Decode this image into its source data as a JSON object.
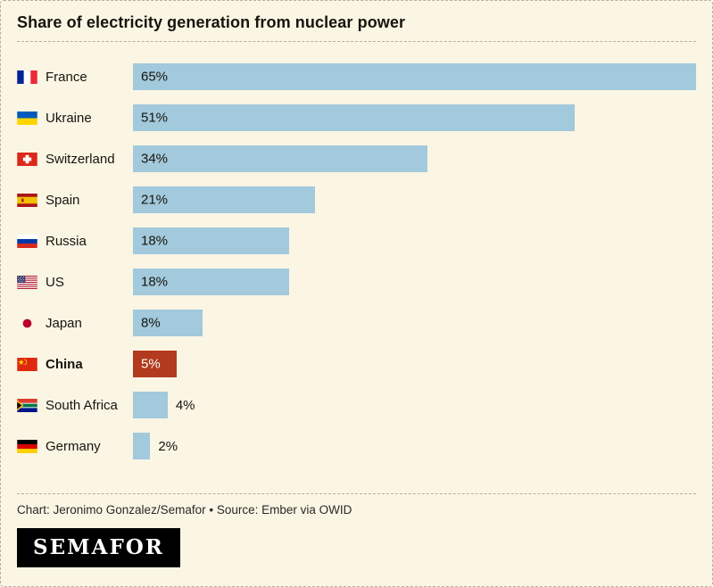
{
  "title": "Share of electricity generation from nuclear power",
  "footer": {
    "credit": "Chart: Jeronimo Gonzalez/Semafor • Source: Ember via OWID",
    "logo": "SEMAFOR"
  },
  "colors": {
    "background": "#fbf5e4",
    "bar": "#a2c9dc",
    "highlight_bar": "#b23a1e",
    "text": "#17140d"
  },
  "chart_data": {
    "type": "bar",
    "orientation": "horizontal",
    "title": "Share of electricity generation from nuclear power",
    "xlabel": "",
    "ylabel": "",
    "xlim": [
      0,
      65
    ],
    "grid": false,
    "legend": false,
    "categories": [
      "France",
      "Ukraine",
      "Switzerland",
      "Spain",
      "Russia",
      "US",
      "Japan",
      "China",
      "South Africa",
      "Germany"
    ],
    "values": [
      65,
      51,
      34,
      21,
      18,
      18,
      8,
      5,
      4,
      2
    ],
    "labels": [
      "65%",
      "51%",
      "34%",
      "21%",
      "18%",
      "18%",
      "8%",
      "5%",
      "4%",
      "2%"
    ],
    "highlight_category": "China",
    "rows": [
      {
        "country": "France",
        "value": 65,
        "label": "65%",
        "highlight": false,
        "label_outside": false
      },
      {
        "country": "Ukraine",
        "value": 51,
        "label": "51%",
        "highlight": false,
        "label_outside": false
      },
      {
        "country": "Switzerland",
        "value": 34,
        "label": "34%",
        "highlight": false,
        "label_outside": false
      },
      {
        "country": "Spain",
        "value": 21,
        "label": "21%",
        "highlight": false,
        "label_outside": false
      },
      {
        "country": "Russia",
        "value": 18,
        "label": "18%",
        "highlight": false,
        "label_outside": false
      },
      {
        "country": "US",
        "value": 18,
        "label": "18%",
        "highlight": false,
        "label_outside": false
      },
      {
        "country": "Japan",
        "value": 8,
        "label": "8%",
        "highlight": false,
        "label_outside": false
      },
      {
        "country": "China",
        "value": 5,
        "label": "5%",
        "highlight": true,
        "label_outside": false
      },
      {
        "country": "South Africa",
        "value": 4,
        "label": "4%",
        "highlight": false,
        "label_outside": true
      },
      {
        "country": "Germany",
        "value": 2,
        "label": "2%",
        "highlight": false,
        "label_outside": true
      }
    ]
  }
}
